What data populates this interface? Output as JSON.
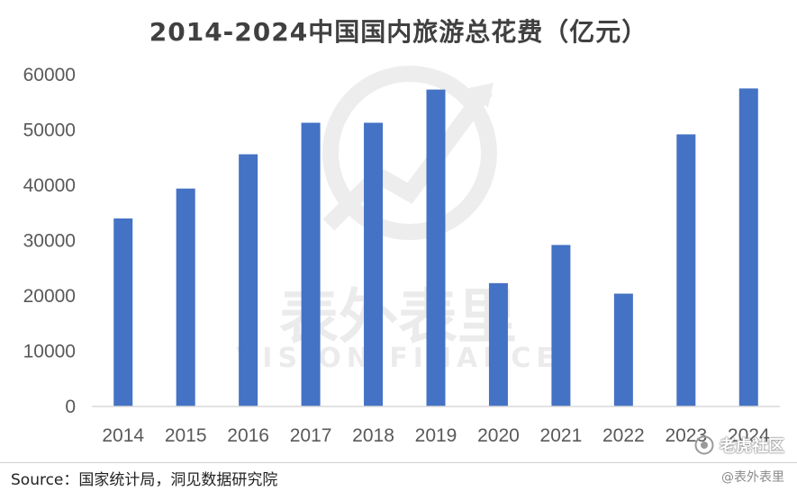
{
  "chart_data": {
    "type": "bar",
    "title": "2014-2024中国国内旅游总花费（亿元）",
    "categories": [
      "2014",
      "2015",
      "2016",
      "2017",
      "2018",
      "2019",
      "2020",
      "2021",
      "2022",
      "2023",
      "2024"
    ],
    "values": [
      34000,
      39400,
      45600,
      51300,
      51300,
      57300,
      22300,
      29200,
      20400,
      49200,
      57500
    ],
    "ylim": [
      0,
      60000
    ],
    "yticks": [
      "0",
      "10000",
      "20000",
      "30000",
      "40000",
      "50000",
      "60000"
    ],
    "grid": false,
    "legend": "none",
    "bar_color": "#4472c4"
  },
  "watermark": {
    "text_cn": "表外表里",
    "text_en": "VISION FINANCE"
  },
  "source": "Source：国家统计局，洞见数据研究院",
  "corner_logo": "老虎社区",
  "corner_handle": "@表外表里"
}
